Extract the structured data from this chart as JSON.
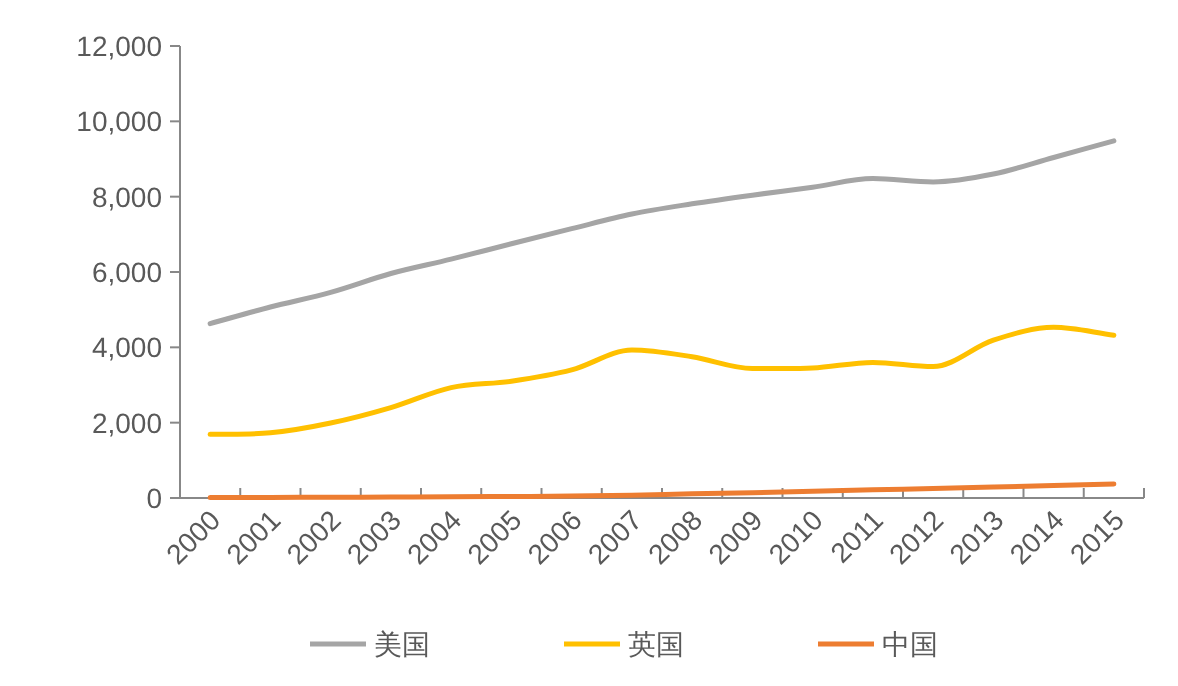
{
  "chart_data": {
    "type": "line",
    "categories": [
      "2000",
      "2001",
      "2002",
      "2003",
      "2004",
      "2005",
      "2006",
      "2007",
      "2008",
      "2009",
      "2010",
      "2011",
      "2012",
      "2013",
      "2014",
      "2015"
    ],
    "series": [
      {
        "name": "美国",
        "color": "#a5a5a5",
        "values": [
          4630,
          5070,
          5460,
          5960,
          6340,
          6750,
          7150,
          7540,
          7810,
          8040,
          8250,
          8480,
          8390,
          8600,
          9040,
          9480
        ]
      },
      {
        "name": "英国",
        "color": "#ffc000",
        "values": [
          1690,
          1730,
          1990,
          2400,
          2930,
          3100,
          3400,
          3930,
          3750,
          3440,
          3450,
          3600,
          3490,
          4190,
          4530,
          4320
        ]
      },
      {
        "name": "中国",
        "color": "#ed7d31",
        "values": [
          10,
          15,
          20,
          25,
          30,
          40,
          50,
          70,
          110,
          140,
          180,
          220,
          250,
          290,
          330,
          370
        ]
      }
    ],
    "ylim": [
      0,
      12000
    ],
    "yticks": [
      {
        "value": 0,
        "label": "0"
      },
      {
        "value": 2000,
        "label": "2,000"
      },
      {
        "value": 4000,
        "label": "4,000"
      },
      {
        "value": 6000,
        "label": "6,000"
      },
      {
        "value": 8000,
        "label": "8,000"
      },
      {
        "value": 10000,
        "label": "10,000"
      },
      {
        "value": 12000,
        "label": "12,000"
      }
    ],
    "grid": false,
    "legend": "bottom",
    "marker": "none",
    "line_style": "solid"
  }
}
